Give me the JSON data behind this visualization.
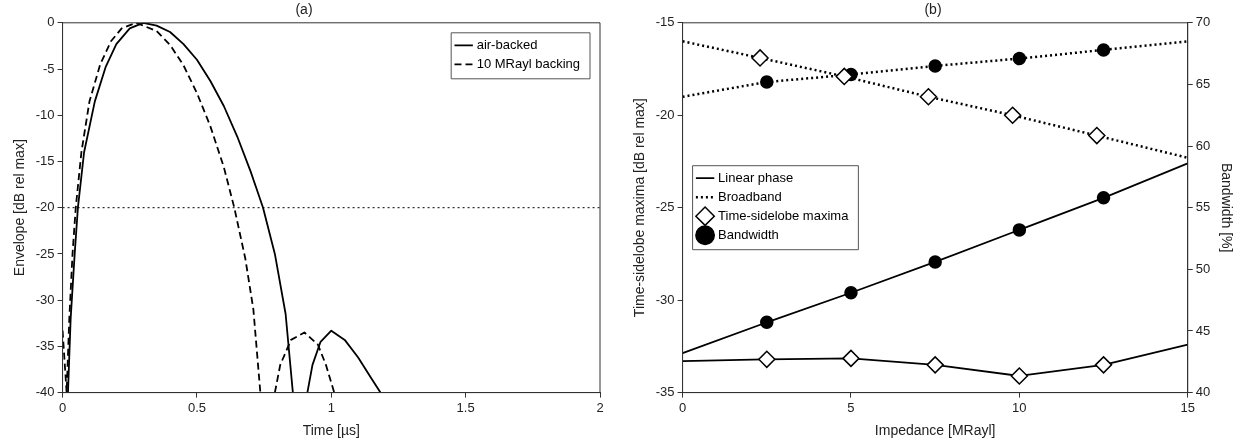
{
  "chart_data": [
    {
      "type": "line",
      "title": "(a)",
      "xlabel": "Time [µs]",
      "ylabel": "Envelope [dB rel max]",
      "xlim": [
        0,
        2
      ],
      "xticks": [
        0,
        0.5,
        1,
        1.5,
        2
      ],
      "ylim": [
        -40,
        0
      ],
      "yticks": [
        -40,
        -35,
        -30,
        -25,
        -20,
        -15,
        -10,
        -5,
        0
      ],
      "grid": false,
      "legend": "top right",
      "marker": "none",
      "ref_lines": [
        {
          "axis": "y",
          "value": -20,
          "line_style": "dotted",
          "color": "#000000"
        }
      ],
      "series": [
        {
          "name": "air-backed",
          "color": "#000000",
          "line_style": "solid",
          "x": [
            0.02,
            0.03,
            0.045,
            0.057,
            0.08,
            0.12,
            0.16,
            0.2,
            0.25,
            0.3,
            0.35,
            0.4,
            0.45,
            0.5,
            0.55,
            0.6,
            0.65,
            0.7,
            0.746,
            0.79,
            0.83,
            0.857,
            0.885,
            0.911,
            0.93,
            0.96,
            1.0,
            1.05,
            1.1,
            1.15,
            1.183
          ],
          "values": [
            -40,
            -32,
            -25,
            -20,
            -14,
            -8.5,
            -4.8,
            -2.3,
            -0.6,
            0,
            -0.3,
            -1.0,
            -2.3,
            -4.0,
            -6.3,
            -9.0,
            -12.3,
            -16.1,
            -20,
            -25,
            -31.5,
            -40,
            null,
            -40,
            -37,
            -34.5,
            -33.3,
            -34.3,
            -36.2,
            -38.5,
            -40
          ]
        },
        {
          "name": "10 MRayl backing",
          "color": "#000000",
          "line_style": "dashed",
          "x": [
            0,
            0.015,
            0.025,
            0.037,
            0.049,
            0.07,
            0.1,
            0.14,
            0.18,
            0.22,
            0.274,
            0.35,
            0.4,
            0.45,
            0.5,
            0.55,
            0.6,
            0.639,
            0.68,
            0.71,
            0.736,
            0.76,
            0.79,
            0.81,
            0.85,
            0.9,
            0.95,
            0.98,
            1.011
          ],
          "values": [
            -33.3,
            -40,
            -32,
            -25,
            -20,
            -14,
            -8.5,
            -4.5,
            -2,
            -0.6,
            0,
            -0.9,
            -2.4,
            -4.6,
            -7.6,
            -11.2,
            -15.6,
            -20,
            -25.5,
            -31,
            -40,
            null,
            -40,
            -37,
            -34.3,
            -33.5,
            -34.8,
            -37,
            -40
          ]
        }
      ]
    },
    {
      "type": "line",
      "title": "(b)",
      "xlabel": "Impedance [MRayl]",
      "ylabel": "Time-sidelobe maxima [dB rel max]",
      "y2label": "Bandwidth [%]",
      "xlim": [
        0,
        15
      ],
      "xticks": [
        0,
        5,
        10,
        15
      ],
      "ylim": [
        -35,
        -15
      ],
      "yticks": [
        -35,
        -30,
        -25,
        -20,
        -15
      ],
      "y2lim": [
        40,
        70
      ],
      "y2ticks": [
        40,
        45,
        50,
        55,
        60,
        65,
        70
      ],
      "grid": false,
      "legend": "left",
      "series": [
        {
          "name": "Linear phase",
          "color": "#000000",
          "line_style": "solid",
          "marker": "none",
          "x": [
            0,
            2.5,
            5,
            7.5,
            10,
            12.5,
            15
          ],
          "values": [
            -33.3,
            -33.2,
            -33.15,
            -33.5,
            -34.1,
            -33.5,
            -32.4
          ]
        },
        {
          "name": "Broadband",
          "color": "#000000",
          "line_style": "dotted",
          "marker": "none",
          "x": [
            0,
            2.3,
            4.8,
            7.3,
            9.8,
            12.3,
            15
          ],
          "values": [
            -16.0,
            -16.9,
            -17.9,
            -19.0,
            -20.0,
            -21.1,
            -22.3
          ]
        },
        {
          "color": "#000000",
          "line_style": "solid",
          "marker": "none",
          "axis": "y2",
          "x": [
            0,
            2.5,
            5,
            7.5,
            10,
            12.5,
            15
          ],
          "values": [
            43.2,
            45.7,
            48.1,
            50.6,
            53.2,
            55.8,
            58.6
          ]
        },
        {
          "color": "#000000",
          "line_style": "dotted",
          "marker": "none",
          "axis": "y2",
          "x": [
            0,
            2.5,
            5,
            7.5,
            10,
            12.5,
            15
          ],
          "values": [
            64.0,
            65.2,
            65.8,
            66.5,
            67.1,
            67.8,
            68.5
          ]
        },
        {
          "name": "Time-sidelobe maxima",
          "type": "scatter",
          "color": "#000000",
          "marker": "diamond",
          "x": [
            2.5,
            5,
            7.5,
            10,
            12.5,
            2.3,
            4.8,
            7.3,
            9.8,
            12.3
          ],
          "values": [
            -33.2,
            -33.15,
            -33.5,
            -34.1,
            -33.5,
            -16.9,
            -17.9,
            -19.0,
            -20.0,
            -21.1
          ]
        },
        {
          "name": "Bandwidth",
          "type": "scatter",
          "color": "#000000",
          "marker": "circle",
          "axis": "y2",
          "x": [
            2.5,
            5,
            7.5,
            10,
            12.5,
            2.5,
            5,
            7.5,
            10,
            12.5
          ],
          "values": [
            45.7,
            48.1,
            50.6,
            53.2,
            55.8,
            65.2,
            65.8,
            66.5,
            67.1,
            67.8
          ]
        }
      ]
    }
  ]
}
